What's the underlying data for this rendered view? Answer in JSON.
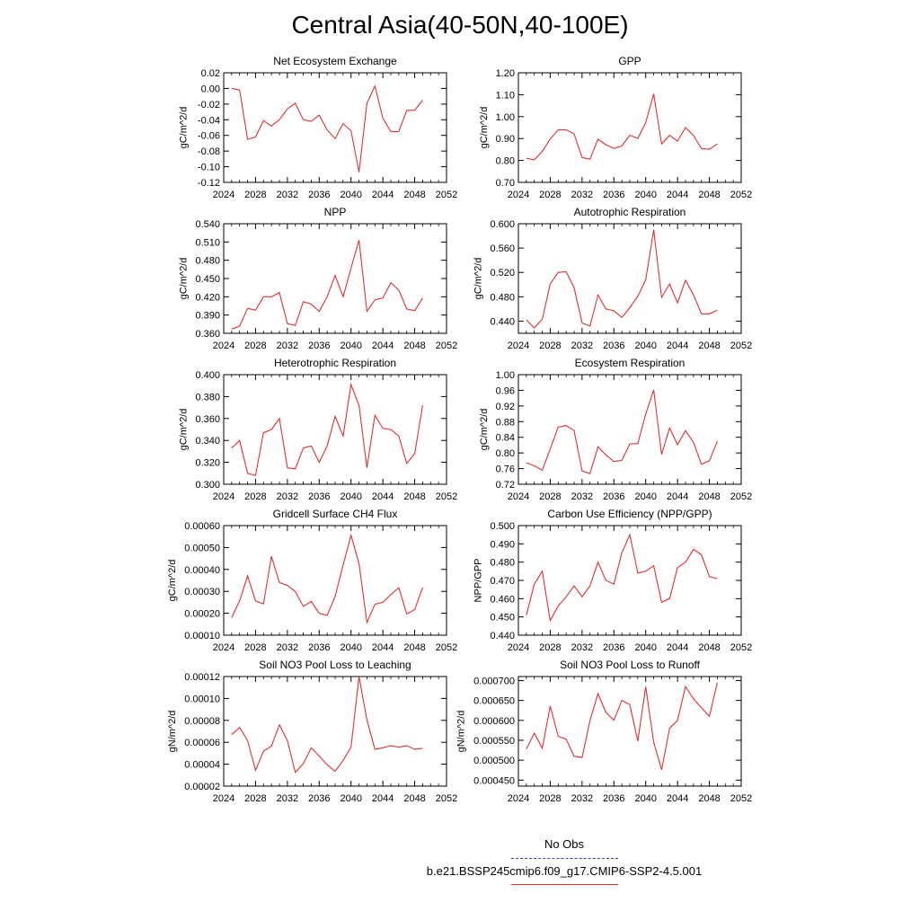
{
  "page": {
    "title": "Central Asia(40-50N,40-100E)"
  },
  "legend": {
    "items": [
      {
        "label": "No Obs",
        "color": "#2f3fd6",
        "style": "dashed"
      },
      {
        "label": "b.e21.BSSP245cmip6.f09_g17.CMIP6-SSP2-4.5.001",
        "color": "#e03030",
        "style": "solid"
      }
    ]
  },
  "chart_data": [
    {
      "type": "line",
      "title": "Net Ecosystem Exchange",
      "ylabel": "gC/m^2/d",
      "xlim": [
        2024,
        2052
      ],
      "ylim": [
        -0.12,
        0.02
      ],
      "xticks": [
        "2024",
        "2028",
        "2032",
        "2036",
        "2040",
        "2044",
        "2048",
        "2052"
      ],
      "yticks": [
        "0.02",
        "0.00",
        "-0.02",
        "-0.04",
        "-0.06",
        "-0.08",
        "-0.10",
        "-0.12"
      ],
      "series": [
        {
          "x": [
            2025,
            2026,
            2027,
            2028,
            2029,
            2030,
            2031,
            2032,
            2033,
            2034,
            2035,
            2036,
            2037,
            2038,
            2039,
            2040,
            2041,
            2042,
            2043,
            2044,
            2045,
            2046,
            2047,
            2048,
            2049
          ],
          "values": [
            0.0,
            -0.002,
            -0.065,
            -0.062,
            -0.041,
            -0.048,
            -0.04,
            -0.026,
            -0.019,
            -0.04,
            -0.042,
            -0.034,
            -0.053,
            -0.064,
            -0.045,
            -0.054,
            -0.107,
            -0.019,
            0.003,
            -0.038,
            -0.055,
            -0.055,
            -0.028,
            -0.028,
            -0.015
          ]
        }
      ]
    },
    {
      "type": "line",
      "title": "GPP",
      "ylabel": "gC/m^2/d",
      "xlim": [
        2024,
        2052
      ],
      "ylim": [
        0.7,
        1.2
      ],
      "xticks": [
        "2024",
        "2028",
        "2032",
        "2036",
        "2040",
        "2044",
        "2048",
        "2052"
      ],
      "yticks": [
        "1.20",
        "1.10",
        "1.00",
        "0.90",
        "0.80",
        "0.70"
      ],
      "series": [
        {
          "x": [
            2025,
            2026,
            2027,
            2028,
            2029,
            2030,
            2031,
            2032,
            2033,
            2034,
            2035,
            2036,
            2037,
            2038,
            2039,
            2040,
            2041,
            2042,
            2043,
            2044,
            2045,
            2046,
            2047,
            2048,
            2049
          ],
          "values": [
            0.81,
            0.803,
            0.842,
            0.898,
            0.94,
            0.94,
            0.921,
            0.813,
            0.806,
            0.897,
            0.872,
            0.855,
            0.866,
            0.915,
            0.901,
            0.973,
            1.103,
            0.875,
            0.915,
            0.888,
            0.95,
            0.914,
            0.855,
            0.851,
            0.876
          ]
        }
      ]
    },
    {
      "type": "line",
      "title": "NPP",
      "ylabel": "gC/m^2/d",
      "xlim": [
        2024,
        2052
      ],
      "ylim": [
        0.36,
        0.54
      ],
      "xticks": [
        "2024",
        "2028",
        "2032",
        "2036",
        "2040",
        "2044",
        "2048",
        "2052"
      ],
      "yticks": [
        "0.540",
        "0.510",
        "0.480",
        "0.450",
        "0.420",
        "0.390",
        "0.360"
      ],
      "series": [
        {
          "x": [
            2025,
            2026,
            2027,
            2028,
            2029,
            2030,
            2031,
            2032,
            2033,
            2034,
            2035,
            2036,
            2037,
            2038,
            2039,
            2040,
            2041,
            2042,
            2043,
            2044,
            2045,
            2046,
            2047,
            2048,
            2049
          ],
          "values": [
            0.367,
            0.372,
            0.401,
            0.398,
            0.42,
            0.42,
            0.427,
            0.376,
            0.373,
            0.412,
            0.408,
            0.396,
            0.42,
            0.455,
            0.42,
            0.467,
            0.513,
            0.396,
            0.415,
            0.418,
            0.443,
            0.431,
            0.4,
            0.397,
            0.418
          ]
        }
      ]
    },
    {
      "type": "line",
      "title": "Autotrophic Respiration",
      "ylabel": "gC/m^2/d",
      "xlim": [
        2024,
        2052
      ],
      "ylim": [
        0.42,
        0.6
      ],
      "xticks": [
        "2024",
        "2028",
        "2032",
        "2036",
        "2040",
        "2044",
        "2048",
        "2052"
      ],
      "yticks": [
        "0.600",
        "0.560",
        "0.520",
        "0.480",
        "0.440"
      ],
      "series": [
        {
          "x": [
            2025,
            2026,
            2027,
            2028,
            2029,
            2030,
            2031,
            2032,
            2033,
            2034,
            2035,
            2036,
            2037,
            2038,
            2039,
            2040,
            2041,
            2042,
            2043,
            2044,
            2045,
            2046,
            2047,
            2048,
            2049
          ],
          "values": [
            0.442,
            0.429,
            0.443,
            0.501,
            0.52,
            0.521,
            0.495,
            0.437,
            0.432,
            0.483,
            0.46,
            0.457,
            0.446,
            0.462,
            0.481,
            0.508,
            0.59,
            0.479,
            0.501,
            0.47,
            0.507,
            0.483,
            0.452,
            0.452,
            0.458
          ]
        }
      ]
    },
    {
      "type": "line",
      "title": "Heterotrophic Respiration",
      "ylabel": "gC/m^2/d",
      "xlim": [
        2024,
        2052
      ],
      "ylim": [
        0.3,
        0.4
      ],
      "xticks": [
        "2024",
        "2028",
        "2032",
        "2036",
        "2040",
        "2044",
        "2048",
        "2052"
      ],
      "yticks": [
        "0.400",
        "0.380",
        "0.360",
        "0.340",
        "0.320",
        "0.300"
      ],
      "series": [
        {
          "x": [
            2025,
            2026,
            2027,
            2028,
            2029,
            2030,
            2031,
            2032,
            2033,
            2034,
            2035,
            2036,
            2037,
            2038,
            2039,
            2040,
            2041,
            2042,
            2043,
            2044,
            2045,
            2046,
            2047,
            2048,
            2049
          ],
          "values": [
            0.333,
            0.34,
            0.31,
            0.308,
            0.347,
            0.35,
            0.36,
            0.315,
            0.314,
            0.333,
            0.335,
            0.32,
            0.335,
            0.362,
            0.344,
            0.391,
            0.372,
            0.315,
            0.363,
            0.351,
            0.35,
            0.344,
            0.319,
            0.328,
            0.372
          ]
        }
      ]
    },
    {
      "type": "line",
      "title": "Ecosystem Respiration",
      "ylabel": "gC/m^2/d",
      "xlim": [
        2024,
        2052
      ],
      "ylim": [
        0.72,
        1.0
      ],
      "xticks": [
        "2024",
        "2028",
        "2032",
        "2036",
        "2040",
        "2044",
        "2048",
        "2052"
      ],
      "yticks": [
        "1.00",
        "0.96",
        "0.92",
        "0.88",
        "0.84",
        "0.80",
        "0.76",
        "0.72"
      ],
      "series": [
        {
          "x": [
            2025,
            2026,
            2027,
            2028,
            2029,
            2030,
            2031,
            2032,
            2033,
            2034,
            2035,
            2036,
            2037,
            2038,
            2039,
            2040,
            2041,
            2042,
            2043,
            2044,
            2045,
            2046,
            2047,
            2048,
            2049
          ],
          "values": [
            0.775,
            0.767,
            0.756,
            0.81,
            0.866,
            0.87,
            0.857,
            0.754,
            0.747,
            0.816,
            0.795,
            0.778,
            0.781,
            0.823,
            0.824,
            0.899,
            0.961,
            0.796,
            0.864,
            0.821,
            0.857,
            0.827,
            0.771,
            0.78,
            0.83
          ]
        }
      ]
    },
    {
      "type": "line",
      "title": "Gridcell Surface CH4 Flux",
      "ylabel": "gC/m^2/d",
      "xlim": [
        2024,
        2052
      ],
      "ylim": [
        0.0001,
        0.0006
      ],
      "xticks": [
        "2024",
        "2028",
        "2032",
        "2036",
        "2040",
        "2044",
        "2048",
        "2052"
      ],
      "yticks": [
        "0.00060",
        "0.00050",
        "0.00040",
        "0.00030",
        "0.00020",
        "0.00010"
      ],
      "series": [
        {
          "x": [
            2025,
            2026,
            2027,
            2028,
            2029,
            2030,
            2031,
            2032,
            2033,
            2034,
            2035,
            2036,
            2037,
            2038,
            2039,
            2040,
            2041,
            2042,
            2043,
            2044,
            2045,
            2046,
            2047,
            2048,
            2049
          ],
          "values": [
            0.00018,
            0.000257,
            0.000371,
            0.000256,
            0.000243,
            0.00046,
            0.00034,
            0.000327,
            0.000299,
            0.000231,
            0.000254,
            0.0002,
            0.00019,
            0.000277,
            0.00042,
            0.000556,
            0.000427,
            0.000158,
            0.000241,
            0.00025,
            0.000285,
            0.000317,
            0.000197,
            0.000217,
            0.000318
          ]
        }
      ]
    },
    {
      "type": "line",
      "title": "Carbon Use Efficiency (NPP/GPP)",
      "ylabel": "NPP/GPP",
      "xlim": [
        2024,
        2052
      ],
      "ylim": [
        0.44,
        0.5
      ],
      "xticks": [
        "2024",
        "2028",
        "2032",
        "2036",
        "2040",
        "2044",
        "2048",
        "2052"
      ],
      "yticks": [
        "0.500",
        "0.490",
        "0.480",
        "0.470",
        "0.460",
        "0.450",
        "0.440"
      ],
      "series": [
        {
          "x": [
            2025,
            2026,
            2027,
            2028,
            2029,
            2030,
            2031,
            2032,
            2033,
            2034,
            2035,
            2036,
            2037,
            2038,
            2039,
            2040,
            2041,
            2042,
            2043,
            2044,
            2045,
            2046,
            2047,
            2048,
            2049
          ],
          "values": [
            0.451,
            0.468,
            0.475,
            0.448,
            0.456,
            0.461,
            0.467,
            0.461,
            0.467,
            0.48,
            0.47,
            0.468,
            0.485,
            0.495,
            0.474,
            0.475,
            0.478,
            0.458,
            0.46,
            0.477,
            0.48,
            0.487,
            0.484,
            0.472,
            0.471
          ]
        }
      ]
    },
    {
      "type": "line",
      "title": "Soil NO3 Pool Loss to Leaching",
      "ylabel": "gN/m^2/d",
      "xlim": [
        2024,
        2052
      ],
      "ylim": [
        2e-05,
        0.00012
      ],
      "xticks": [
        "2024",
        "2028",
        "2032",
        "2036",
        "2040",
        "2044",
        "2048",
        "2052"
      ],
      "yticks": [
        "0.00012",
        "0.00010",
        "0.00008",
        "0.00006",
        "0.00004",
        "0.00002"
      ],
      "series": [
        {
          "x": [
            2025,
            2026,
            2027,
            2028,
            2029,
            2030,
            2031,
            2032,
            2033,
            2034,
            2035,
            2036,
            2037,
            2038,
            2039,
            2040,
            2041,
            2042,
            2043,
            2044,
            2045,
            2046,
            2047,
            2048,
            2049
          ],
          "values": [
            6.7e-05,
            7.35e-05,
            6.15e-05,
            3.45e-05,
            5.2e-05,
            5.65e-05,
            7.6e-05,
            6.15e-05,
            3.25e-05,
            4.05e-05,
            5.5e-05,
            4.75e-05,
            3.95e-05,
            3.35e-05,
            4.35e-05,
            5.55e-05,
            0.00012,
            8.05e-05,
            5.35e-05,
            5.5e-05,
            5.7e-05,
            5.55e-05,
            5.7e-05,
            5.35e-05,
            5.45e-05
          ]
        }
      ]
    },
    {
      "type": "line",
      "title": "Soil NO3 Pool Loss to Runoff",
      "ylabel": "gN/m^2/d",
      "xlim": [
        2024,
        2052
      ],
      "ylim": [
        0.000435,
        0.00071
      ],
      "xticks": [
        "2024",
        "2028",
        "2032",
        "2036",
        "2040",
        "2044",
        "2048",
        "2052"
      ],
      "yticks": [
        "0.000700",
        "0.000650",
        "0.000600",
        "0.000550",
        "0.000500",
        "0.000450"
      ],
      "series": [
        {
          "x": [
            2025,
            2026,
            2027,
            2028,
            2029,
            2030,
            2031,
            2032,
            2033,
            2034,
            2035,
            2036,
            2037,
            2038,
            2039,
            2040,
            2041,
            2042,
            2043,
            2044,
            2045,
            2046,
            2047,
            2048,
            2049
          ],
          "values": [
            0.000528,
            0.000568,
            0.00053,
            0.000636,
            0.00056,
            0.000553,
            0.00051,
            0.000507,
            0.0006,
            0.000667,
            0.00062,
            0.0006,
            0.00065,
            0.00064,
            0.000548,
            0.000684,
            0.000545,
            0.000476,
            0.00058,
            0.0006,
            0.000685,
            0.000654,
            0.000632,
            0.00061,
            0.000695
          ]
        }
      ]
    }
  ]
}
